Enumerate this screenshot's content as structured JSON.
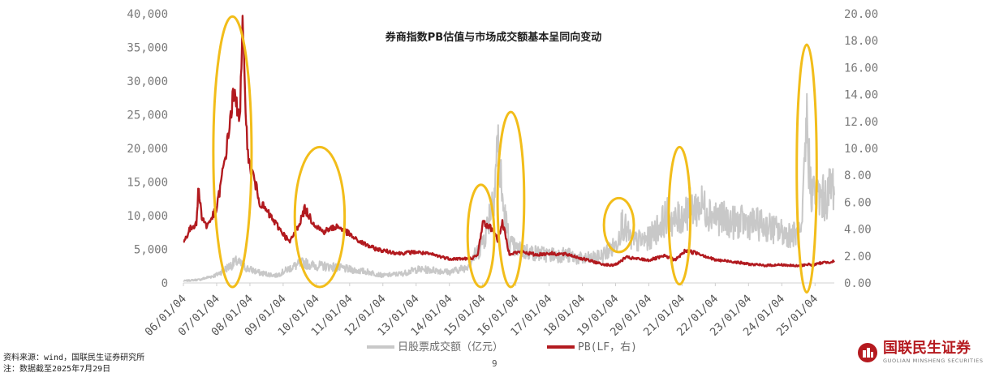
{
  "page_number": "9",
  "footer": {
    "source": "资料来源：wind，国联民生证券研究所",
    "note": "注：数据截至2025年7月29日"
  },
  "logo": {
    "name": "国联民生证券",
    "subtitle": "GUOLIAN MINSHENG SECURITIES",
    "brand_color": "#b51a1f"
  },
  "chart_data": {
    "type": "line",
    "title": "券商指数PB估值与市场成交额基本呈同向变动",
    "left_axis": {
      "ticks": [
        "0",
        "5,000",
        "10,000",
        "15,000",
        "20,000",
        "25,000",
        "30,000",
        "35,000",
        "40,000"
      ],
      "ylim": [
        0,
        40000
      ]
    },
    "right_axis": {
      "ticks": [
        "0.00",
        "2.00",
        "4.00",
        "6.00",
        "8.00",
        "10.00",
        "12.00",
        "14.00",
        "16.00",
        "18.00",
        "20.00"
      ],
      "ylim": [
        0,
        20
      ]
    },
    "x_ticks": [
      "06/01/04",
      "07/01/04",
      "08/01/04",
      "09/01/04",
      "10/01/04",
      "11/01/04",
      "12/01/04",
      "13/01/04",
      "14/01/04",
      "15/01/04",
      "16/01/04",
      "17/01/04",
      "18/01/04",
      "19/01/04",
      "20/01/04",
      "21/01/04",
      "22/01/04",
      "23/01/04",
      "24/01/04",
      "25/01/04"
    ],
    "x_range_years": [
      2006.0,
      2025.58
    ],
    "grid": false,
    "legend_position": "bottom",
    "series": [
      {
        "name": "日股票成交额（亿元）",
        "axis": "left",
        "color": "#c8c8c8",
        "anchors_year": [
          2006.0,
          2006.5,
          2007.0,
          2007.3,
          2007.6,
          2007.9,
          2008.3,
          2008.8,
          2009.2,
          2009.6,
          2009.9,
          2010.5,
          2011.0,
          2011.6,
          2012.0,
          2012.6,
          2013.0,
          2013.6,
          2014.0,
          2014.5,
          2014.9,
          2015.1,
          2015.35,
          2015.45,
          2015.6,
          2015.8,
          2016.0,
          2016.5,
          2017.0,
          2017.5,
          2018.0,
          2018.5,
          2019.0,
          2019.2,
          2019.5,
          2020.0,
          2020.55,
          2020.8,
          2021.2,
          2021.6,
          2022.0,
          2022.5,
          2023.0,
          2023.5,
          2024.0,
          2024.6,
          2024.75,
          2024.85,
          2025.0,
          2025.3,
          2025.58
        ],
        "anchors_value": [
          300,
          500,
          1200,
          2200,
          3200,
          2200,
          1500,
          1100,
          2200,
          3000,
          2600,
          2400,
          2000,
          1600,
          1100,
          1400,
          2000,
          1900,
          1600,
          2300,
          5000,
          7500,
          14000,
          21000,
          12000,
          6000,
          5000,
          4500,
          4200,
          4200,
          3500,
          3800,
          5500,
          9000,
          6000,
          6500,
          10000,
          9000,
          11000,
          11500,
          10000,
          9000,
          9000,
          8500,
          7500,
          7000,
          24000,
          15000,
          13000,
          12500,
          15000
        ],
        "noise_amplitude": 0.28
      },
      {
        "name": "PB(LF，右)",
        "axis": "right",
        "color": "#b21a1f",
        "anchors_year": [
          2006.0,
          2006.2,
          2006.4,
          2006.45,
          2006.55,
          2006.7,
          2007.0,
          2007.3,
          2007.5,
          2007.7,
          2007.78,
          2007.85,
          2007.95,
          2008.1,
          2008.3,
          2008.6,
          2008.9,
          2009.2,
          2009.5,
          2009.65,
          2009.9,
          2010.2,
          2010.6,
          2010.8,
          2011.2,
          2011.7,
          2012.0,
          2012.5,
          2013.0,
          2013.5,
          2014.0,
          2014.6,
          2014.85,
          2015.0,
          2015.3,
          2015.45,
          2015.6,
          2015.8,
          2016.2,
          2016.6,
          2017.0,
          2017.6,
          2018.0,
          2018.6,
          2018.9,
          2019.1,
          2019.3,
          2019.6,
          2020.0,
          2020.5,
          2020.8,
          2021.1,
          2021.5,
          2022.0,
          2022.5,
          2023.0,
          2023.5,
          2024.0,
          2024.5,
          2024.8,
          2024.9,
          2025.2,
          2025.58
        ],
        "anchors_value": [
          3.0,
          4.0,
          4.5,
          7.1,
          5.0,
          4.2,
          5.5,
          10.0,
          14.0,
          12.5,
          18.8,
          14.5,
          9.0,
          8.0,
          6.0,
          5.0,
          4.0,
          3.0,
          4.5,
          5.5,
          4.5,
          3.8,
          4.2,
          4.0,
          3.2,
          2.6,
          2.4,
          2.2,
          2.3,
          2.1,
          1.8,
          1.8,
          2.0,
          4.5,
          4.0,
          3.2,
          4.5,
          2.2,
          2.3,
          2.1,
          2.2,
          2.1,
          1.8,
          1.4,
          1.3,
          1.5,
          1.9,
          1.8,
          1.7,
          2.0,
          1.7,
          2.4,
          2.2,
          1.7,
          1.6,
          1.4,
          1.3,
          1.35,
          1.25,
          1.4,
          1.3,
          1.5,
          1.6
        ],
        "noise_amplitude": 0.06
      }
    ],
    "highlight_ellipses_years": [
      {
        "year_range": [
          2006.9,
          2008.05
        ],
        "value_range_right": [
          -0.3,
          19.8
        ],
        "color": "#f2bd1a"
      },
      {
        "year_range": [
          2009.35,
          2010.85
        ],
        "value_range_right": [
          -0.3,
          10.1
        ],
        "color": "#f2bd1a"
      },
      {
        "year_range": [
          2014.55,
          2015.35
        ],
        "value_range_right": [
          -0.3,
          7.3
        ],
        "color": "#f2bd1a"
      },
      {
        "year_range": [
          2015.45,
          2016.25
        ],
        "value_range_right": [
          -0.3,
          12.7
        ],
        "color": "#f2bd1a"
      },
      {
        "year_range": [
          2018.65,
          2019.55
        ],
        "value_range_right": [
          2.3,
          6.3
        ],
        "color": "#f2bd1a"
      },
      {
        "year_range": [
          2020.6,
          2021.25
        ],
        "value_range_right": [
          -0.1,
          10.1
        ],
        "color": "#f2bd1a"
      },
      {
        "year_range": [
          2024.45,
          2025.05
        ],
        "value_range_right": [
          -0.7,
          17.7
        ],
        "color": "#f2bd1a"
      }
    ]
  }
}
